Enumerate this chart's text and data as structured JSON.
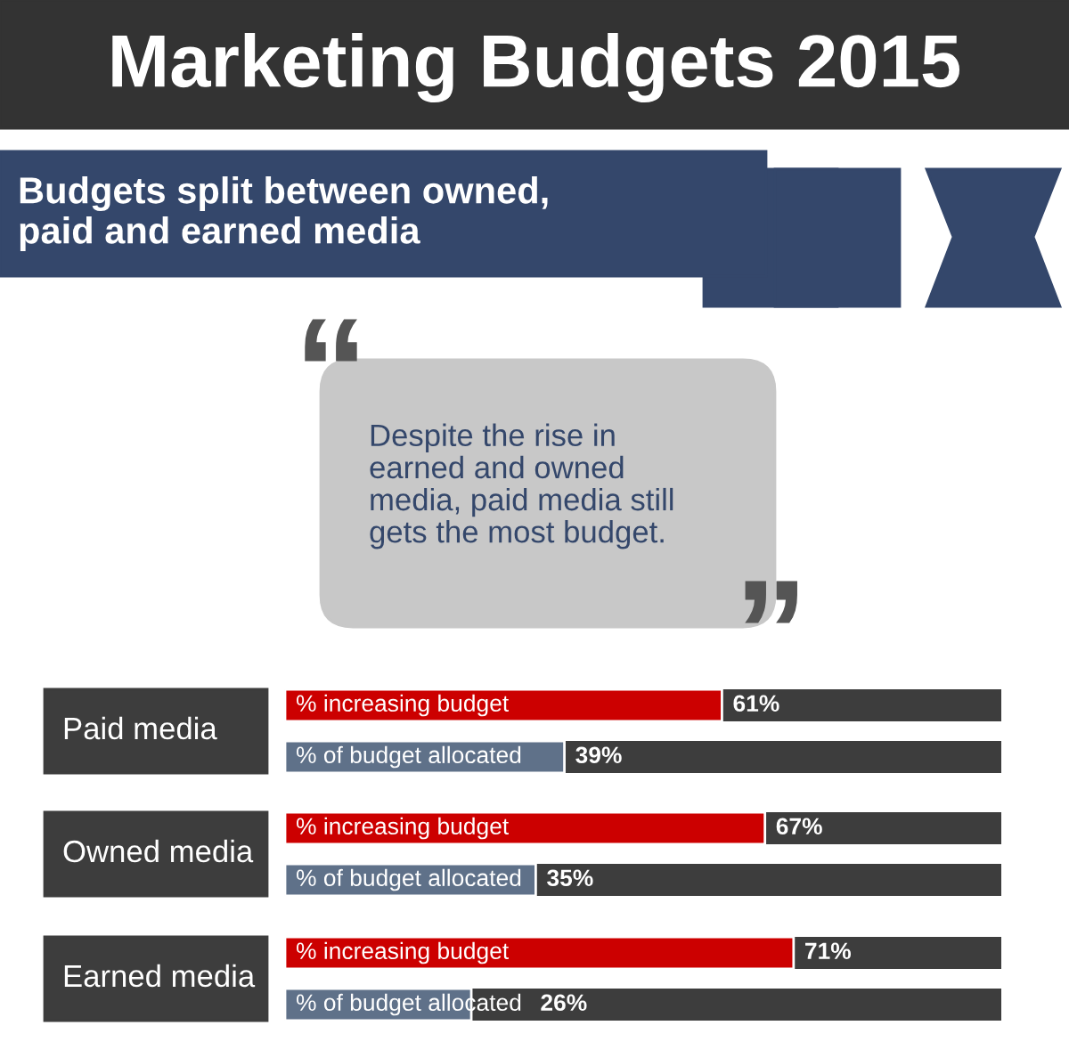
{
  "chart_data": {
    "type": "bar",
    "orientation": "horizontal",
    "title": "Marketing Budgets 2015",
    "subtitle": "Budgets split between owned,\npaid and earned media",
    "annotations": [
      "“",
      "Despite the rise in\nearned and owned\nmedia, paid media still\ngets the most budget.",
      "”"
    ],
    "categories": [
      "Paid media",
      "Owned media",
      "Earned media"
    ],
    "series": [
      {
        "name": "% increasing budget",
        "color": "#cc0000",
        "values": [
          61,
          67,
          71
        ],
        "value_labels": [
          "61%",
          "67%",
          "71%"
        ]
      },
      {
        "name": "% of budget allocated",
        "color": "#5f7189",
        "values": [
          39,
          35,
          26
        ],
        "value_labels": [
          "39%",
          "35%",
          "26%"
        ]
      }
    ],
    "xlim": [
      0,
      100
    ],
    "tick_labels": false
  }
}
